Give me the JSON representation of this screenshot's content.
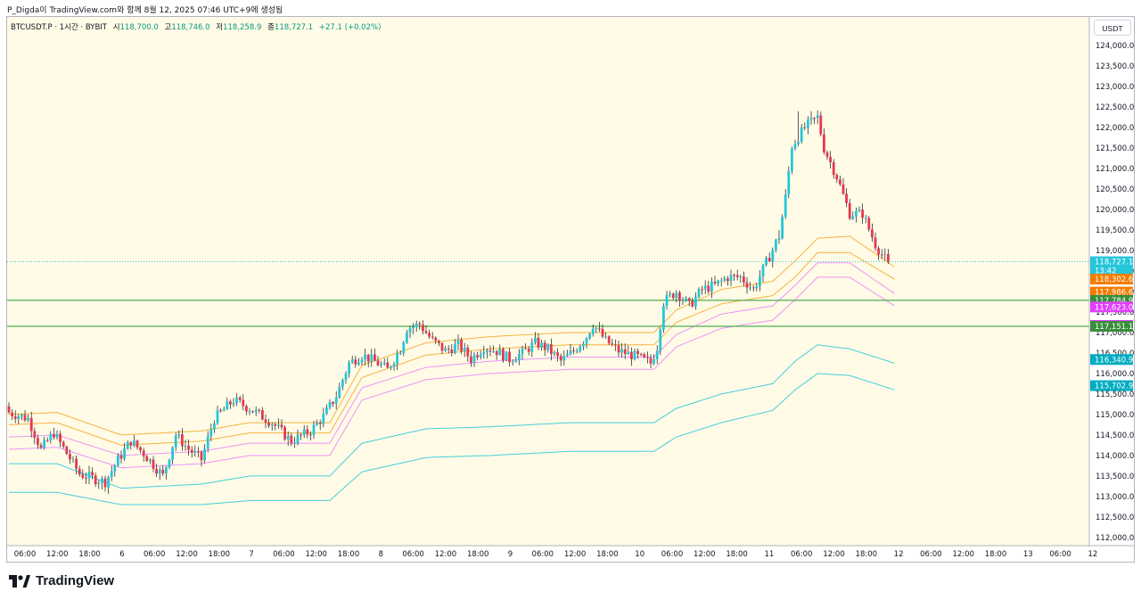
{
  "caption": "P_Digda이 TradingView.com와 함께 8월 12, 2025 07:46 UTC+9에 생성됨",
  "legend": {
    "symbol": "BTCUSDT.P · 1시간 · BYBIT",
    "open_label": "시",
    "open": "118,700.0",
    "high_label": "고",
    "high": "118,746.0",
    "low_label": "저",
    "low": "118,258.9",
    "close_label": "종",
    "close": "118,727.1",
    "change": "+27.1 (+0.02%)"
  },
  "currency": "USDT",
  "brand": "TradingView",
  "colors": {
    "up": "#26c6da",
    "down": "#e53950",
    "background": "#fffbe6",
    "band_orange": "#f5a623",
    "band_pink": "#ea80fc",
    "band_cyan": "#26c6da",
    "support_line": "#4caf50",
    "price_line": "#26c6da"
  },
  "chart_data": {
    "type": "candlestick",
    "ylim": [
      111800,
      124700
    ],
    "y_ticks": [
      112000,
      112500,
      113000,
      113500,
      114000,
      114500,
      115000,
      115500,
      116000,
      116500,
      117000,
      117500,
      118000,
      118500,
      119000,
      119500,
      120000,
      120500,
      121000,
      121500,
      122000,
      122500,
      123000,
      123500,
      124000
    ],
    "x_ticks": [
      "06:00",
      "12:00",
      "18:00",
      "6",
      "06:00",
      "12:00",
      "18:00",
      "7",
      "06:00",
      "12:00",
      "18:00",
      "8",
      "06:00",
      "12:00",
      "18:00",
      "9",
      "06:00",
      "12:00",
      "18:00",
      "10",
      "06:00",
      "12:00",
      "18:00",
      "11",
      "06:00",
      "12:00",
      "18:00",
      "12",
      "06:00",
      "12:00",
      "18:00",
      "13",
      "06:00",
      "12"
    ],
    "close_anchors": [
      [
        0,
        115050
      ],
      [
        6,
        114900
      ],
      [
        10,
        114150
      ],
      [
        14,
        114550
      ],
      [
        18,
        114050
      ],
      [
        22,
        113550
      ],
      [
        26,
        113450
      ],
      [
        30,
        113350
      ],
      [
        34,
        113900
      ],
      [
        38,
        114350
      ],
      [
        42,
        114050
      ],
      [
        48,
        113500
      ],
      [
        52,
        114500
      ],
      [
        56,
        114150
      ],
      [
        60,
        113900
      ],
      [
        64,
        114900
      ],
      [
        70,
        115350
      ],
      [
        76,
        115100
      ],
      [
        82,
        114800
      ],
      [
        88,
        114350
      ],
      [
        94,
        114600
      ],
      [
        98,
        114950
      ],
      [
        102,
        115450
      ],
      [
        106,
        116250
      ],
      [
        110,
        116450
      ],
      [
        114,
        116300
      ],
      [
        118,
        116100
      ],
      [
        122,
        116600
      ],
      [
        124,
        117100
      ],
      [
        128,
        117200
      ],
      [
        132,
        116800
      ],
      [
        136,
        116550
      ],
      [
        140,
        116700
      ],
      [
        144,
        116350
      ],
      [
        148,
        116650
      ],
      [
        152,
        116550
      ],
      [
        156,
        116350
      ],
      [
        160,
        116500
      ],
      [
        164,
        116750
      ],
      [
        168,
        116600
      ],
      [
        172,
        116300
      ],
      [
        176,
        116550
      ],
      [
        180,
        116900
      ],
      [
        182,
        117200
      ],
      [
        186,
        116800
      ],
      [
        190,
        116550
      ],
      [
        196,
        116400
      ],
      [
        200,
        116250
      ],
      [
        202,
        116650
      ],
      [
        204,
        117750
      ],
      [
        208,
        118000
      ],
      [
        212,
        117650
      ],
      [
        216,
        118050
      ],
      [
        220,
        118150
      ],
      [
        224,
        118350
      ],
      [
        228,
        118350
      ],
      [
        232,
        118050
      ],
      [
        236,
        118700
      ],
      [
        240,
        119350
      ],
      [
        242,
        120300
      ],
      [
        244,
        121550
      ],
      [
        248,
        122000
      ],
      [
        252,
        122250
      ],
      [
        254,
        121500
      ],
      [
        258,
        120800
      ],
      [
        262,
        119900
      ],
      [
        266,
        119900
      ],
      [
        270,
        119150
      ],
      [
        272,
        118900
      ],
      [
        274,
        118700
      ]
    ],
    "high_anchors": [
      [
        236,
        118850
      ],
      [
        240,
        119500
      ],
      [
        242,
        120500
      ],
      [
        246,
        122400
      ],
      [
        250,
        122400
      ],
      [
        252,
        122250
      ]
    ],
    "bands": [
      {
        "name": "orange-upper",
        "color": "#f5a623",
        "anchors": [
          [
            0,
            115000
          ],
          [
            15,
            115050
          ],
          [
            35,
            114500
          ],
          [
            60,
            114600
          ],
          [
            75,
            114800
          ],
          [
            100,
            114800
          ],
          [
            110,
            116200
          ],
          [
            130,
            116750
          ],
          [
            150,
            116900
          ],
          [
            175,
            117000
          ],
          [
            201,
            117000
          ],
          [
            208,
            117550
          ],
          [
            222,
            118050
          ],
          [
            238,
            118250
          ],
          [
            245,
            118750
          ],
          [
            252,
            119300
          ],
          [
            262,
            119350
          ],
          [
            276,
            118600
          ]
        ]
      },
      {
        "name": "orange-lower",
        "color": "#f5a623",
        "anchors": [
          [
            0,
            114750
          ],
          [
            15,
            114800
          ],
          [
            35,
            114250
          ],
          [
            60,
            114350
          ],
          [
            75,
            114550
          ],
          [
            100,
            114550
          ],
          [
            110,
            115900
          ],
          [
            130,
            116450
          ],
          [
            150,
            116600
          ],
          [
            175,
            116700
          ],
          [
            201,
            116700
          ],
          [
            208,
            117250
          ],
          [
            222,
            117700
          ],
          [
            238,
            117900
          ],
          [
            245,
            118350
          ],
          [
            252,
            118950
          ],
          [
            262,
            118950
          ],
          [
            276,
            118300
          ]
        ]
      },
      {
        "name": "pink-upper",
        "color": "#ea80fc",
        "anchors": [
          [
            0,
            114450
          ],
          [
            15,
            114500
          ],
          [
            35,
            114000
          ],
          [
            60,
            114100
          ],
          [
            75,
            114300
          ],
          [
            100,
            114300
          ],
          [
            110,
            115650
          ],
          [
            130,
            116150
          ],
          [
            150,
            116300
          ],
          [
            175,
            116400
          ],
          [
            201,
            116400
          ],
          [
            208,
            116950
          ],
          [
            222,
            117450
          ],
          [
            238,
            117650
          ],
          [
            245,
            118150
          ],
          [
            252,
            118700
          ],
          [
            262,
            118700
          ],
          [
            276,
            117950
          ]
        ]
      },
      {
        "name": "pink-lower",
        "color": "#ea80fc",
        "anchors": [
          [
            0,
            114150
          ],
          [
            15,
            114200
          ],
          [
            35,
            113700
          ],
          [
            60,
            113800
          ],
          [
            75,
            114000
          ],
          [
            100,
            114000
          ],
          [
            110,
            115350
          ],
          [
            130,
            115850
          ],
          [
            150,
            116000
          ],
          [
            175,
            116100
          ],
          [
            201,
            116100
          ],
          [
            208,
            116650
          ],
          [
            222,
            117100
          ],
          [
            238,
            117300
          ],
          [
            245,
            117800
          ],
          [
            252,
            118350
          ],
          [
            262,
            118350
          ],
          [
            276,
            117650
          ]
        ]
      },
      {
        "name": "cyan-upper",
        "color": "#26c6da",
        "anchors": [
          [
            0,
            113800
          ],
          [
            15,
            113800
          ],
          [
            35,
            113200
          ],
          [
            60,
            113300
          ],
          [
            75,
            113500
          ],
          [
            100,
            113500
          ],
          [
            110,
            114300
          ],
          [
            130,
            114650
          ],
          [
            150,
            114700
          ],
          [
            175,
            114800
          ],
          [
            201,
            114800
          ],
          [
            208,
            115150
          ],
          [
            222,
            115500
          ],
          [
            238,
            115750
          ],
          [
            245,
            116300
          ],
          [
            252,
            116700
          ],
          [
            262,
            116600
          ],
          [
            276,
            116250
          ]
        ]
      },
      {
        "name": "cyan-lower",
        "color": "#26c6da",
        "anchors": [
          [
            0,
            113100
          ],
          [
            15,
            113100
          ],
          [
            35,
            112800
          ],
          [
            60,
            112800
          ],
          [
            75,
            112900
          ],
          [
            100,
            112900
          ],
          [
            110,
            113600
          ],
          [
            130,
            113950
          ],
          [
            150,
            114000
          ],
          [
            175,
            114100
          ],
          [
            201,
            114100
          ],
          [
            208,
            114450
          ],
          [
            222,
            114800
          ],
          [
            238,
            115100
          ],
          [
            245,
            115600
          ],
          [
            252,
            116000
          ],
          [
            262,
            115950
          ],
          [
            276,
            115600
          ]
        ]
      }
    ],
    "horizontal_lines": [
      {
        "name": "support-upper",
        "value": 117784.9,
        "color": "#4caf50"
      },
      {
        "name": "support-lower",
        "value": 117151.1,
        "color": "#4caf50"
      }
    ],
    "current_price": {
      "value": 118727.1,
      "label": "118,727.1",
      "countdown": "13:42"
    },
    "price_labels": [
      {
        "value": 118302.6,
        "label": "118,302.6",
        "color": "#f57c00"
      },
      {
        "value": 117986.6,
        "label": "117,986.6",
        "color": "#f57c00"
      },
      {
        "value": 117784.9,
        "label": "117,784.9",
        "color": "#388e3c"
      },
      {
        "value": 117623.0,
        "label": "117,623.0",
        "color": "#e040fb"
      },
      {
        "value": 117173.3,
        "label": "117,173.3",
        "color": "#e040fb"
      },
      {
        "value": 117151.1,
        "label": "117,151.1",
        "color": "#388e3c"
      },
      {
        "value": 116340.9,
        "label": "116,340.9",
        "color": "#00acc1"
      },
      {
        "value": 115702.9,
        "label": "115,702.9",
        "color": "#00acc1"
      }
    ]
  }
}
